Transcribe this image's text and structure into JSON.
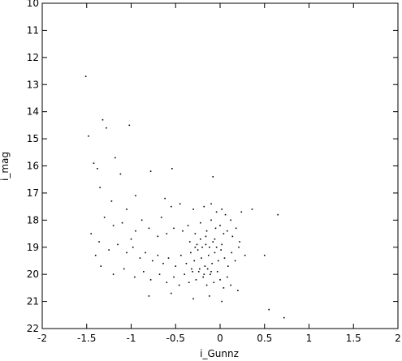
{
  "chart_data": {
    "type": "scatter",
    "title": "",
    "xlabel": "i_Gunnz",
    "ylabel": "i_mag",
    "xlim": [
      -2,
      2
    ],
    "ylim": [
      22,
      10
    ],
    "y_inverted": true,
    "grid": false,
    "legend": "none",
    "x_ticks": [
      -2,
      -1.5,
      -1,
      -0.5,
      0,
      0.5,
      1,
      1.5,
      2
    ],
    "x_tick_labels": [
      "-2",
      "-1.5",
      "-1",
      "-0.5",
      "0",
      "0.5",
      "1",
      "1.5",
      "2"
    ],
    "y_ticks": [
      10,
      11,
      12,
      13,
      14,
      15,
      16,
      17,
      18,
      19,
      20,
      21,
      22
    ],
    "y_tick_labels": [
      "10",
      "11",
      "12",
      "13",
      "14",
      "15",
      "16",
      "17",
      "18",
      "19",
      "20",
      "21",
      "22"
    ],
    "marker_color": "#000000",
    "points": [
      [
        -1.51,
        12.7
      ],
      [
        -1.48,
        14.9
      ],
      [
        -1.32,
        14.3
      ],
      [
        -1.28,
        14.6
      ],
      [
        -1.02,
        14.5
      ],
      [
        -1.42,
        15.9
      ],
      [
        -1.38,
        16.1
      ],
      [
        -1.18,
        15.7
      ],
      [
        -1.12,
        16.3
      ],
      [
        -0.78,
        16.2
      ],
      [
        -0.54,
        16.1
      ],
      [
        -0.08,
        16.4
      ],
      [
        -1.35,
        16.8
      ],
      [
        -1.22,
        17.3
      ],
      [
        -1.05,
        17.6
      ],
      [
        -0.95,
        17.1
      ],
      [
        -0.62,
        17.2
      ],
      [
        -0.55,
        17.5
      ],
      [
        -0.45,
        17.4
      ],
      [
        -0.3,
        17.6
      ],
      [
        -0.18,
        17.5
      ],
      [
        -0.1,
        17.4
      ],
      [
        -0.04,
        17.7
      ],
      [
        0.02,
        17.6
      ],
      [
        0.06,
        17.8
      ],
      [
        0.12,
        18.0
      ],
      [
        0.24,
        17.7
      ],
      [
        0.36,
        17.6
      ],
      [
        0.65,
        17.8
      ],
      [
        -1.3,
        17.9
      ],
      [
        -1.2,
        18.2
      ],
      [
        -1.1,
        18.1
      ],
      [
        -0.95,
        18.4
      ],
      [
        -0.8,
        18.3
      ],
      [
        -0.7,
        18.6
      ],
      [
        -0.6,
        18.5
      ],
      [
        -0.52,
        18.3
      ],
      [
        -0.42,
        18.4
      ],
      [
        -0.36,
        18.2
      ],
      [
        -0.28,
        18.5
      ],
      [
        -0.22,
        18.1
      ],
      [
        -0.15,
        18.4
      ],
      [
        -0.1,
        18.0
      ],
      [
        -0.05,
        18.3
      ],
      [
        0.0,
        18.2
      ],
      [
        0.04,
        18.5
      ],
      [
        0.08,
        18.4
      ],
      [
        0.14,
        18.6
      ],
      [
        0.18,
        18.3
      ],
      [
        0.22,
        18.8
      ],
      [
        -1.36,
        18.8
      ],
      [
        -1.25,
        19.1
      ],
      [
        -1.15,
        18.9
      ],
      [
        -1.05,
        19.2
      ],
      [
        -0.98,
        19.0
      ],
      [
        -0.9,
        19.4
      ],
      [
        -0.84,
        19.2
      ],
      [
        -0.76,
        19.5
      ],
      [
        -0.7,
        19.3
      ],
      [
        -0.64,
        19.6
      ],
      [
        -0.58,
        19.4
      ],
      [
        -0.5,
        19.7
      ],
      [
        -0.44,
        19.3
      ],
      [
        -0.38,
        19.6
      ],
      [
        -0.33,
        19.2
      ],
      [
        -0.29,
        19.5
      ],
      [
        -0.25,
        19.1
      ],
      [
        -0.21,
        19.4
      ],
      [
        -0.17,
        19.7
      ],
      [
        -0.13,
        19.3
      ],
      [
        -0.09,
        19.6
      ],
      [
        -0.06,
        19.2
      ],
      [
        -0.02,
        19.5
      ],
      [
        0.01,
        19.1
      ],
      [
        0.05,
        19.4
      ],
      [
        0.09,
        19.7
      ],
      [
        0.13,
        19.2
      ],
      [
        0.17,
        19.5
      ],
      [
        0.21,
        19.0
      ],
      [
        0.28,
        19.3
      ],
      [
        -1.34,
        19.7
      ],
      [
        -1.2,
        20.0
      ],
      [
        -1.08,
        19.8
      ],
      [
        -0.96,
        20.1
      ],
      [
        -0.86,
        19.9
      ],
      [
        -0.78,
        20.2
      ],
      [
        -0.68,
        20.0
      ],
      [
        -0.6,
        20.3
      ],
      [
        -0.52,
        20.1
      ],
      [
        -0.46,
        20.4
      ],
      [
        -0.4,
        20.0
      ],
      [
        -0.35,
        20.3
      ],
      [
        -0.31,
        19.9
      ],
      [
        -0.27,
        20.2
      ],
      [
        -0.23,
        19.8
      ],
      [
        -0.19,
        20.1
      ],
      [
        -0.15,
        20.4
      ],
      [
        -0.11,
        20.0
      ],
      [
        -0.07,
        20.3
      ],
      [
        -0.03,
        19.9
      ],
      [
        0.0,
        20.2
      ],
      [
        0.04,
        20.5
      ],
      [
        0.08,
        20.1
      ],
      [
        0.12,
        20.4
      ],
      [
        0.2,
        20.6
      ],
      [
        -0.8,
        20.8
      ],
      [
        -0.55,
        20.7
      ],
      [
        -0.3,
        20.9
      ],
      [
        -0.12,
        20.8
      ],
      [
        0.02,
        21.0
      ],
      [
        0.5,
        19.3
      ],
      [
        0.55,
        21.3
      ],
      [
        0.72,
        21.6
      ],
      [
        -1.45,
        18.5
      ],
      [
        -1.4,
        19.3
      ],
      [
        -1.0,
        18.7
      ],
      [
        -0.88,
        18.0
      ],
      [
        -0.66,
        17.9
      ],
      [
        -0.34,
        18.8
      ],
      [
        -0.26,
        18.9
      ],
      [
        -0.2,
        19.0
      ],
      [
        -0.16,
        18.9
      ],
      [
        -0.12,
        19.0
      ],
      [
        -0.08,
        18.8
      ],
      [
        -0.04,
        19.0
      ],
      [
        -0.32,
        19.8
      ],
      [
        -0.24,
        19.9
      ],
      [
        -0.18,
        20.0
      ],
      [
        -0.14,
        19.8
      ],
      [
        -0.1,
        19.9
      ],
      [
        -0.28,
        19.0
      ],
      [
        -0.22,
        18.7
      ],
      [
        -0.16,
        18.6
      ],
      [
        -0.06,
        18.7
      ],
      [
        0.02,
        18.9
      ]
    ]
  }
}
